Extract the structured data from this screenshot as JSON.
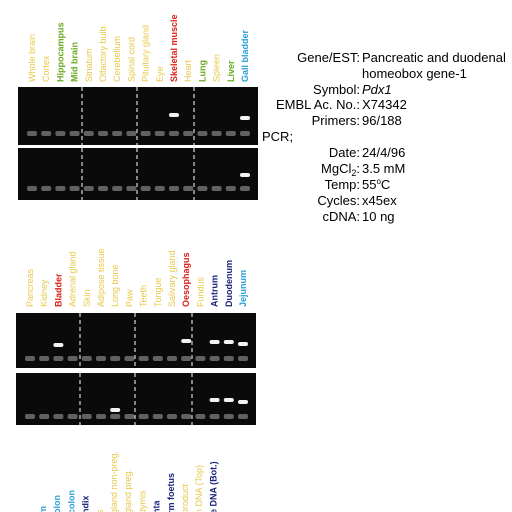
{
  "panels": [
    {
      "labels": [
        {
          "text": "Whole brain",
          "color": "#e8c84a"
        },
        {
          "text": "Cortex",
          "color": "#e8c84a"
        },
        {
          "text": "Hippocampus",
          "color": "#6aaa1e"
        },
        {
          "text": "Mid brain",
          "color": "#6aaa1e"
        },
        {
          "text": "Striatum",
          "color": "#e8c84a"
        },
        {
          "text": "Olfactory bulb",
          "color": "#e8c84a"
        },
        {
          "text": "Cerebellum",
          "color": "#e8c84a"
        },
        {
          "text": "Spinal cord",
          "color": "#e8c84a"
        },
        {
          "text": "Pituitary gland",
          "color": "#e8c84a"
        },
        {
          "text": "Eye",
          "color": "#e8c84a"
        },
        {
          "text": "Skeletal muscle",
          "color": "#d9201a"
        },
        {
          "text": "Heart",
          "color": "#e8c84a"
        },
        {
          "text": "Lung",
          "color": "#6aaa1e"
        },
        {
          "text": "Spleen",
          "color": "#e8c84a"
        },
        {
          "text": "Liver",
          "color": "#6aaa1e"
        },
        {
          "text": "Gall bladder",
          "color": "#2aa0d8"
        }
      ]
    },
    {
      "labels": [
        {
          "text": "Pancreas",
          "color": "#e8c84a"
        },
        {
          "text": "Kidney",
          "color": "#e8c84a"
        },
        {
          "text": "Bladder",
          "color": "#d9201a"
        },
        {
          "text": "Adrenal gland",
          "color": "#e8c84a"
        },
        {
          "text": "Skin",
          "color": "#e8c84a"
        },
        {
          "text": "Adipose tissue",
          "color": "#e8c84a"
        },
        {
          "text": "Long bone",
          "color": "#e8c84a"
        },
        {
          "text": "Paw",
          "color": "#e8c84a"
        },
        {
          "text": "Teeth",
          "color": "#e8c84a"
        },
        {
          "text": "Tongue",
          "color": "#e8c84a"
        },
        {
          "text": "Salivary gland",
          "color": "#e8c84a"
        },
        {
          "text": "Oesophagus",
          "color": "#d9201a"
        },
        {
          "text": "Fundus",
          "color": "#e8c84a"
        },
        {
          "text": "Antrum",
          "color": "#1a237e"
        },
        {
          "text": "Duodenum",
          "color": "#1a237e"
        },
        {
          "text": "Jejunum",
          "color": "#2aa0d8"
        }
      ]
    },
    {
      "labels": [
        {
          "text": "m",
          "color": "#2aa0d8"
        },
        {
          "text": "olon",
          "color": "#2aa0d8"
        },
        {
          "text": "colon",
          "color": "#2aa0d8"
        },
        {
          "text": "ndix",
          "color": "#1a237e"
        },
        {
          "text": "s",
          "color": "#e8c84a"
        },
        {
          "text": "gland non-preg.",
          "color": "#e8c84a"
        },
        {
          "text": "gland preg.",
          "color": "#e8c84a"
        },
        {
          "text": "dymis",
          "color": "#e8c84a"
        },
        {
          "text": "nta",
          "color": "#1a237e"
        },
        {
          "text": "rm foetus",
          "color": "#1a237e"
        },
        {
          "text": "product",
          "color": "#e8c84a"
        },
        {
          "text": "n DNA (Top)",
          "color": "#e8c84a"
        },
        {
          "text": "e DNA (Bot.)",
          "color": "#1a237e"
        }
      ]
    }
  ],
  "info": {
    "gene_key": "Gene/EST:",
    "gene_line1": "Pancreatic and duodenal",
    "gene_line2": "homeobox gene-1",
    "symbol_key": "Symbol:",
    "symbol": "Pdx1",
    "embl_key": "EMBL Ac. No.:",
    "embl": "X74342",
    "primers_key": "Primers:",
    "primers": "96/188",
    "pcr": "PCR;",
    "date_key": "Date:",
    "date": "24/4/96",
    "mgcl_key": "MgCl",
    "mgcl_sub": "2",
    "mgcl_colon": ":",
    "mgcl": "3.5 mM",
    "temp_key": "Temp:",
    "temp_num": "55",
    "temp_sup": "o",
    "temp_unit": "C",
    "cycles_key": "Cycles:",
    "cycles": "x45ex",
    "cdna_key": "cDNA:",
    "cdna": "10 ng"
  }
}
